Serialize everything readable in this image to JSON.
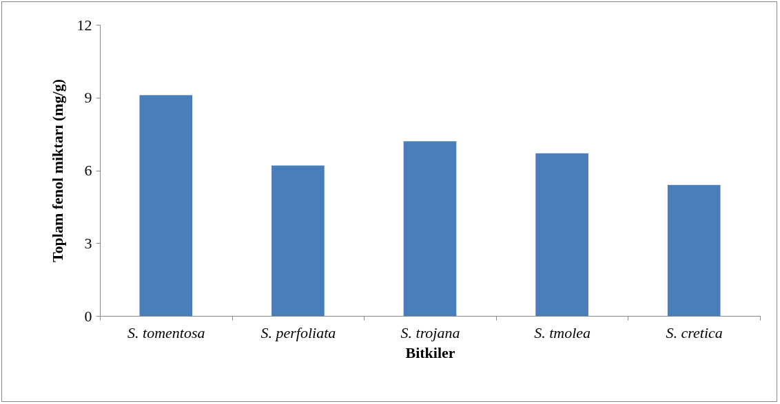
{
  "chart_data": {
    "type": "bar",
    "xlabel": "Bitkiler",
    "ylabel": "Toplam fenol miktarı (mg/g)",
    "categories": [
      "S. tomentosa",
      "S. perfoliata",
      "S. trojana",
      "S. tmolea",
      "S. cretica"
    ],
    "values": [
      9.1,
      6.2,
      7.2,
      6.7,
      5.4
    ],
    "color": "#4a7ebb",
    "ylim": [
      0,
      12
    ],
    "yticks": [
      0,
      3,
      6,
      9,
      12
    ]
  }
}
